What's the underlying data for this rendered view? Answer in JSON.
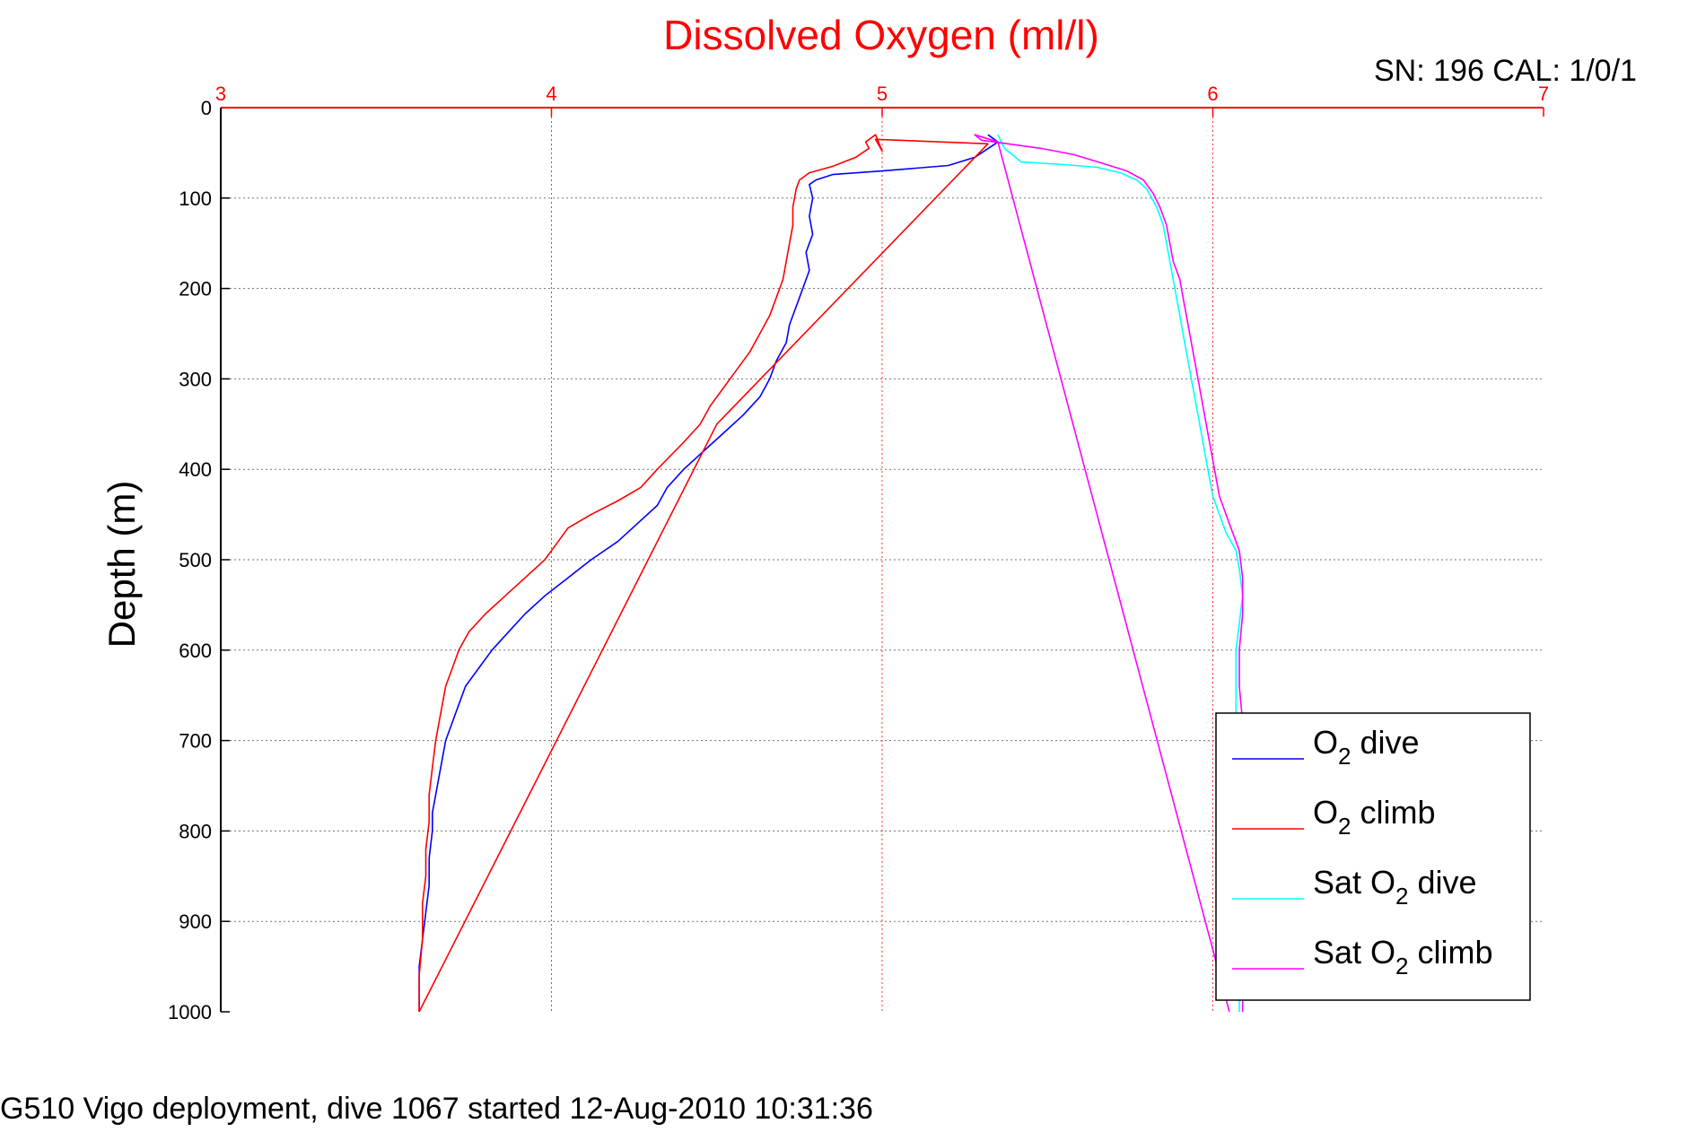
{
  "chart_data": {
    "type": "line",
    "title": "Dissolved Oxygen (ml/l)",
    "subtitle": "SN: 196  CAL: 1/0/1",
    "caption": "G510 Vigo deployment, dive 1067 started 12-Aug-2010 10:31:36",
    "xlabel": "",
    "ylabel": "Depth (m)",
    "xlim": [
      3,
      7
    ],
    "ylim": [
      0,
      1000
    ],
    "y_reversed": true,
    "x_axis_position": "top",
    "xticks": [
      3,
      4,
      5,
      6,
      7
    ],
    "yticks": [
      0,
      100,
      200,
      300,
      400,
      500,
      600,
      700,
      800,
      900,
      1000
    ],
    "grid": true,
    "legend_position": "bottom-right",
    "colors": {
      "title": "#ff0000",
      "x_axis": "#ff0000",
      "o2_dive": "#0000ff",
      "o2_climb": "#ff0000",
      "sat_dive": "#00ffff",
      "sat_climb": "#ff00ff"
    },
    "series": [
      {
        "name": "O2 dive",
        "legend": {
          "prefix": "O",
          "sub": "2",
          "suffix": " dive"
        },
        "color": "#0000ff",
        "points": [
          [
            5.32,
            30
          ],
          [
            5.35,
            38
          ],
          [
            5.28,
            55
          ],
          [
            5.2,
            64
          ],
          [
            5.0,
            70
          ],
          [
            4.85,
            74
          ],
          [
            4.8,
            80
          ],
          [
            4.78,
            85
          ],
          [
            4.79,
            100
          ],
          [
            4.78,
            120
          ],
          [
            4.79,
            140
          ],
          [
            4.77,
            160
          ],
          [
            4.78,
            180
          ],
          [
            4.75,
            210
          ],
          [
            4.72,
            240
          ],
          [
            4.71,
            260
          ],
          [
            4.68,
            280
          ],
          [
            4.66,
            300
          ],
          [
            4.63,
            320
          ],
          [
            4.58,
            340
          ],
          [
            4.52,
            360
          ],
          [
            4.46,
            380
          ],
          [
            4.4,
            400
          ],
          [
            4.35,
            420
          ],
          [
            4.32,
            440
          ],
          [
            4.26,
            460
          ],
          [
            4.2,
            480
          ],
          [
            4.12,
            500
          ],
          [
            4.05,
            520
          ],
          [
            3.98,
            540
          ],
          [
            3.92,
            560
          ],
          [
            3.87,
            580
          ],
          [
            3.82,
            600
          ],
          [
            3.78,
            620
          ],
          [
            3.74,
            640
          ],
          [
            3.72,
            660
          ],
          [
            3.7,
            680
          ],
          [
            3.68,
            700
          ],
          [
            3.67,
            720
          ],
          [
            3.66,
            740
          ],
          [
            3.65,
            760
          ],
          [
            3.64,
            780
          ],
          [
            3.64,
            800
          ],
          [
            3.63,
            830
          ],
          [
            3.63,
            860
          ],
          [
            3.62,
            890
          ],
          [
            3.61,
            920
          ],
          [
            3.6,
            950
          ],
          [
            3.6,
            980
          ],
          [
            3.6,
            1000
          ]
        ]
      },
      {
        "name": "O2 climb",
        "legend": {
          "prefix": "O",
          "sub": "2",
          "suffix": " climb"
        },
        "color": "#ff0000",
        "points": [
          [
            3.6,
            1000
          ],
          [
            3.6,
            960
          ],
          [
            3.61,
            920
          ],
          [
            3.61,
            880
          ],
          [
            3.62,
            850
          ],
          [
            3.62,
            820
          ],
          [
            3.63,
            790
          ],
          [
            3.63,
            760
          ],
          [
            3.64,
            730
          ],
          [
            3.65,
            700
          ],
          [
            3.66,
            680
          ],
          [
            3.67,
            660
          ],
          [
            3.68,
            640
          ],
          [
            3.7,
            620
          ],
          [
            3.72,
            600
          ],
          [
            3.75,
            580
          ],
          [
            3.8,
            560
          ],
          [
            3.86,
            540
          ],
          [
            3.92,
            520
          ],
          [
            3.98,
            500
          ],
          [
            4.02,
            480
          ],
          [
            4.05,
            465
          ],
          [
            4.12,
            450
          ],
          [
            4.2,
            435
          ],
          [
            4.27,
            420
          ],
          [
            4.32,
            400
          ],
          [
            4.36,
            385
          ],
          [
            4.4,
            370
          ],
          [
            4.45,
            350
          ],
          [
            4.48,
            330
          ],
          [
            4.52,
            310
          ],
          [
            4.56,
            290
          ],
          [
            4.6,
            270
          ],
          [
            4.63,
            250
          ],
          [
            4.66,
            230
          ],
          [
            4.68,
            210
          ],
          [
            4.7,
            190
          ],
          [
            4.71,
            170
          ],
          [
            4.72,
            150
          ],
          [
            4.73,
            130
          ],
          [
            4.73,
            110
          ],
          [
            4.74,
            90
          ],
          [
            4.75,
            80
          ],
          [
            4.78,
            72
          ],
          [
            4.85,
            65
          ],
          [
            4.92,
            55
          ],
          [
            4.96,
            45
          ],
          [
            4.95,
            38
          ],
          [
            4.98,
            30
          ],
          [
            5.0,
            48
          ],
          [
            4.98,
            35
          ],
          [
            5.32,
            40
          ],
          [
            4.5,
            350
          ],
          [
            3.6,
            1000
          ]
        ]
      },
      {
        "name": "Sat O2 dive",
        "legend": {
          "prefix": "Sat O",
          "sub": "2",
          "suffix": " dive"
        },
        "color": "#00ffff",
        "points": [
          [
            5.35,
            30
          ],
          [
            5.37,
            45
          ],
          [
            5.42,
            60
          ],
          [
            5.55,
            63
          ],
          [
            5.65,
            66
          ],
          [
            5.72,
            72
          ],
          [
            5.77,
            80
          ],
          [
            5.8,
            90
          ],
          [
            5.83,
            110
          ],
          [
            5.85,
            130
          ],
          [
            5.86,
            150
          ],
          [
            5.87,
            170
          ],
          [
            5.88,
            190
          ],
          [
            5.89,
            210
          ],
          [
            5.9,
            230
          ],
          [
            5.91,
            250
          ],
          [
            5.92,
            270
          ],
          [
            5.93,
            290
          ],
          [
            5.94,
            310
          ],
          [
            5.95,
            330
          ],
          [
            5.96,
            350
          ],
          [
            5.97,
            370
          ],
          [
            5.98,
            390
          ],
          [
            5.99,
            410
          ],
          [
            6.0,
            430
          ],
          [
            6.02,
            450
          ],
          [
            6.04,
            470
          ],
          [
            6.07,
            490
          ],
          [
            6.08,
            510
          ],
          [
            6.09,
            540
          ],
          [
            6.08,
            570
          ],
          [
            6.07,
            600
          ],
          [
            6.07,
            640
          ],
          [
            6.07,
            680
          ],
          [
            6.07,
            720
          ],
          [
            6.07,
            760
          ],
          [
            6.07,
            800
          ],
          [
            6.08,
            850
          ],
          [
            6.08,
            900
          ],
          [
            6.08,
            950
          ],
          [
            6.08,
            1000
          ]
        ]
      },
      {
        "name": "Sat O2 climb",
        "legend": {
          "prefix": "Sat O",
          "sub": "2",
          "suffix": " climb"
        },
        "color": "#ff00ff",
        "points": [
          [
            6.09,
            1000
          ],
          [
            6.09,
            950
          ],
          [
            6.09,
            900
          ],
          [
            6.09,
            850
          ],
          [
            6.09,
            800
          ],
          [
            6.09,
            760
          ],
          [
            6.09,
            720
          ],
          [
            6.09,
            680
          ],
          [
            6.08,
            640
          ],
          [
            6.08,
            600
          ],
          [
            6.09,
            560
          ],
          [
            6.09,
            520
          ],
          [
            6.08,
            490
          ],
          [
            6.06,
            470
          ],
          [
            6.04,
            450
          ],
          [
            6.02,
            430
          ],
          [
            6.01,
            410
          ],
          [
            6.0,
            390
          ],
          [
            5.99,
            370
          ],
          [
            5.98,
            350
          ],
          [
            5.97,
            330
          ],
          [
            5.96,
            310
          ],
          [
            5.95,
            290
          ],
          [
            5.94,
            270
          ],
          [
            5.93,
            250
          ],
          [
            5.92,
            230
          ],
          [
            5.91,
            210
          ],
          [
            5.9,
            190
          ],
          [
            5.88,
            170
          ],
          [
            5.87,
            150
          ],
          [
            5.86,
            130
          ],
          [
            5.84,
            110
          ],
          [
            5.82,
            95
          ],
          [
            5.79,
            80
          ],
          [
            5.74,
            70
          ],
          [
            5.67,
            62
          ],
          [
            5.58,
            52
          ],
          [
            5.48,
            45
          ],
          [
            5.38,
            40
          ],
          [
            5.3,
            36
          ],
          [
            5.28,
            30
          ],
          [
            5.35,
            38
          ],
          [
            6.05,
            1000
          ]
        ]
      }
    ]
  }
}
